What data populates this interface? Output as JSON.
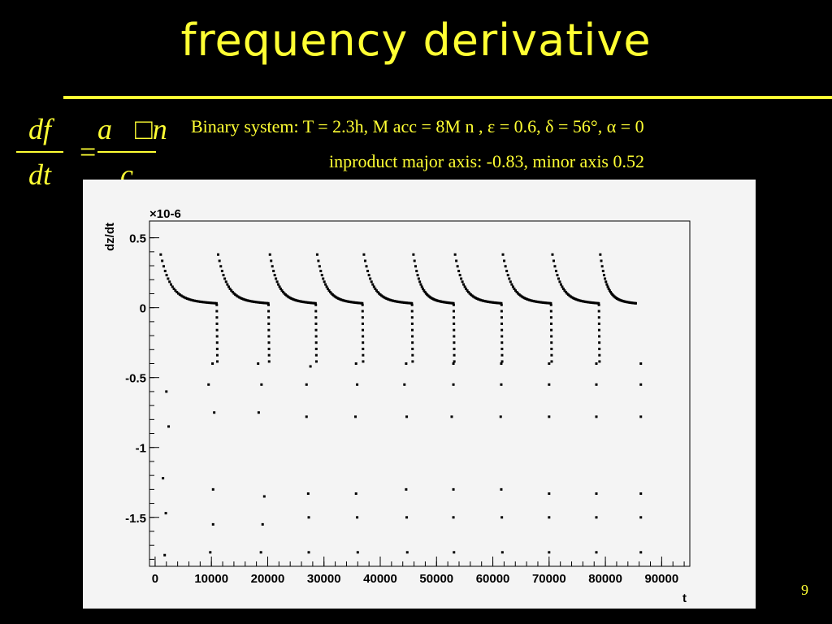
{
  "slide": {
    "title": "frequency derivative",
    "page_number": "9",
    "colors": {
      "background": "#000000",
      "text": "#ffff33",
      "plot_bg": "#f4f4f4",
      "marker": "#000000"
    }
  },
  "formula": {
    "lhs_num": "df",
    "lhs_den": "dt",
    "equals": "=",
    "rhs_num": "a⃗□n⃗",
    "rhs_den": "c"
  },
  "caption": {
    "binary_system": "Binary system: T = 2.3h,  M acc = 8M n ,  ε = 0.6,    δ = 56°,  α = 0",
    "inproduct": "inproduct major axis: -0.83, minor axis 0.52"
  },
  "chart_data": {
    "type": "scatter",
    "title": "",
    "xlabel": "t",
    "ylabel": "dz/dt",
    "y_scale_label": "×10-6",
    "xlim": [
      -1000,
      95000
    ],
    "ylim": [
      -1.85,
      0.62
    ],
    "x_ticks": [
      0,
      10000,
      20000,
      30000,
      40000,
      50000,
      60000,
      70000,
      80000,
      90000
    ],
    "y_ticks": [
      0.5,
      0,
      -0.5,
      -1,
      -1.5
    ],
    "y_tick_labels": [
      "0.5",
      "0",
      "-0.5",
      "-1",
      "-1.5"
    ],
    "x_tick_labels": [
      "0",
      "10000",
      "20000",
      "30000",
      "40000",
      "50000",
      "60000",
      "70000",
      "80000",
      "90000"
    ],
    "grid": false,
    "period_starts": [
      1000,
      11200,
      20400,
      28800,
      37100,
      45900,
      53300,
      61800,
      70600,
      79100
    ],
    "sequence_end": 85700,
    "sparse_points": [
      [
        1400,
        -1.22
      ],
      [
        1900,
        -1.47
      ],
      [
        1700,
        -1.77
      ],
      [
        2400,
        -0.85
      ],
      [
        2000,
        -0.6
      ],
      [
        10300,
        -1.3
      ],
      [
        10300,
        -1.55
      ],
      [
        9800,
        -1.75
      ],
      [
        10500,
        -0.75
      ],
      [
        9500,
        -0.55
      ],
      [
        10200,
        -0.4
      ],
      [
        19400,
        -1.35
      ],
      [
        19100,
        -1.55
      ],
      [
        18800,
        -1.75
      ],
      [
        18400,
        -0.75
      ],
      [
        18900,
        -0.55
      ],
      [
        18300,
        -0.4
      ],
      [
        27200,
        -1.33
      ],
      [
        27300,
        -1.5
      ],
      [
        27300,
        -1.75
      ],
      [
        26900,
        -0.78
      ],
      [
        26900,
        -0.55
      ],
      [
        27600,
        -0.42
      ],
      [
        35700,
        -1.33
      ],
      [
        35900,
        -1.5
      ],
      [
        36000,
        -1.75
      ],
      [
        35600,
        -0.78
      ],
      [
        35900,
        -0.55
      ],
      [
        35700,
        -0.4
      ],
      [
        44600,
        -1.3
      ],
      [
        44700,
        -1.5
      ],
      [
        44800,
        -1.75
      ],
      [
        44700,
        -0.78
      ],
      [
        44300,
        -0.55
      ],
      [
        44600,
        -0.4
      ],
      [
        53000,
        -1.3
      ],
      [
        53000,
        -1.5
      ],
      [
        53100,
        -1.75
      ],
      [
        52700,
        -0.78
      ],
      [
        53000,
        -0.55
      ],
      [
        53000,
        -0.4
      ],
      [
        61500,
        -1.3
      ],
      [
        61600,
        -1.5
      ],
      [
        61700,
        -1.75
      ],
      [
        61400,
        -0.78
      ],
      [
        61500,
        -0.55
      ],
      [
        61500,
        -0.4
      ],
      [
        70000,
        -1.33
      ],
      [
        70000,
        -1.5
      ],
      [
        70000,
        -1.75
      ],
      [
        70000,
        -0.78
      ],
      [
        70000,
        -0.55
      ],
      [
        70000,
        -0.4
      ],
      [
        78400,
        -1.33
      ],
      [
        78400,
        -1.5
      ],
      [
        78400,
        -1.75
      ],
      [
        78400,
        -0.78
      ],
      [
        78400,
        -0.55
      ],
      [
        78400,
        -0.4
      ],
      [
        86300,
        -1.33
      ],
      [
        86300,
        -1.5
      ],
      [
        86300,
        -1.75
      ],
      [
        86300,
        -0.78
      ],
      [
        86300,
        -0.55
      ],
      [
        86300,
        -0.4
      ]
    ]
  }
}
